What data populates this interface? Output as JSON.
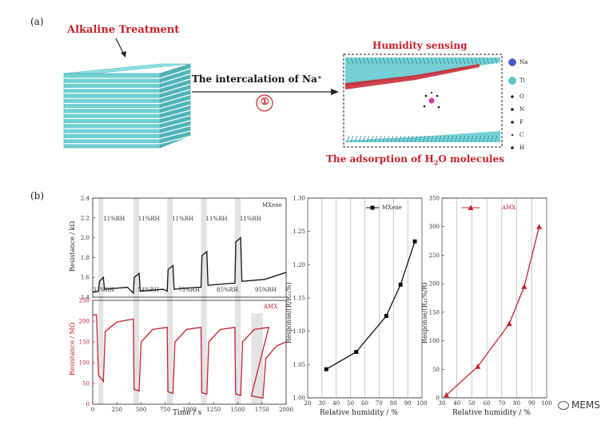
{
  "panel_a": {
    "label": "(a)",
    "alkaline": "Alkaline Treatment",
    "arrow_text": "The intercalation of Na⁺",
    "step": "①",
    "humidity_sensing": "Humidity sensing",
    "adsorption_pre": "The adsorption of H",
    "adsorption_sub": "2",
    "adsorption_post": "O molecules",
    "legend": [
      "Na",
      "Ti",
      "O",
      "N",
      "F",
      "C",
      "H"
    ],
    "colors": {
      "layer": "#5cc8cc",
      "na": "#4a5bd4",
      "ti": "#5cc8cc",
      "accent": "#c8202c"
    }
  },
  "panel_b": {
    "label": "(b)",
    "watermark": "MEMS"
  },
  "chart_data": [
    {
      "type": "line",
      "name": "resistance-vs-time-mxene",
      "ylabel": "Resistance / kΩ",
      "ylim": [
        1.4,
        2.4
      ],
      "yticks": [
        "1.4",
        "1.6",
        "1.8",
        "2.0",
        "2.2",
        "2.4"
      ],
      "legend": "MXene",
      "high_label": "11%RH",
      "low_labels": [
        "33%RH",
        "54%RH",
        "75%RH",
        "85%RH",
        "95%RH"
      ],
      "series_color": "#111111"
    },
    {
      "type": "line",
      "name": "resistance-vs-time-amx",
      "xlabel": "Time / s",
      "ylabel": "Resistance / MΩ",
      "ylim": [
        0,
        250
      ],
      "xlim": [
        0,
        2000
      ],
      "yticks": [
        "0",
        "50",
        "100",
        "150",
        "200",
        "250"
      ],
      "xticks": [
        "0",
        "250",
        "500",
        "750",
        "1000",
        "1250",
        "1500",
        "1750",
        "2000"
      ],
      "legend": "AMX",
      "series_color": "#c8202c"
    },
    {
      "type": "line",
      "name": "response-mxene",
      "xlabel": "Relative humidity / %",
      "ylabel": "Response/(R/R₁₁%)",
      "xlim": [
        20,
        100
      ],
      "ylim": [
        1.0,
        1.3
      ],
      "xticks": [
        "20",
        "30",
        "40",
        "50",
        "60",
        "70",
        "80",
        "90",
        "100"
      ],
      "yticks": [
        "1.00",
        "1.05",
        "1.10",
        "1.15",
        "1.20",
        "1.25",
        "1.30"
      ],
      "legend": "MXene",
      "x": [
        33,
        54,
        75,
        85,
        95
      ],
      "y": [
        1.043,
        1.069,
        1.123,
        1.17,
        1.235
      ],
      "series_color": "#111111"
    },
    {
      "type": "line",
      "name": "response-amx",
      "xlabel": "Relative humidity / %",
      "ylabel": "Response/(R₁₁%/R)",
      "xlim": [
        30,
        100
      ],
      "ylim": [
        0,
        350
      ],
      "xticks": [
        "30",
        "40",
        "50",
        "60",
        "70",
        "80",
        "90",
        "100"
      ],
      "yticks": [
        "0",
        "50",
        "100",
        "150",
        "200",
        "250",
        "300",
        "350"
      ],
      "legend": "AMX",
      "x": [
        33,
        54,
        75,
        85,
        95
      ],
      "y": [
        5,
        55,
        130,
        195,
        300
      ],
      "series_color": "#c8202c"
    }
  ]
}
